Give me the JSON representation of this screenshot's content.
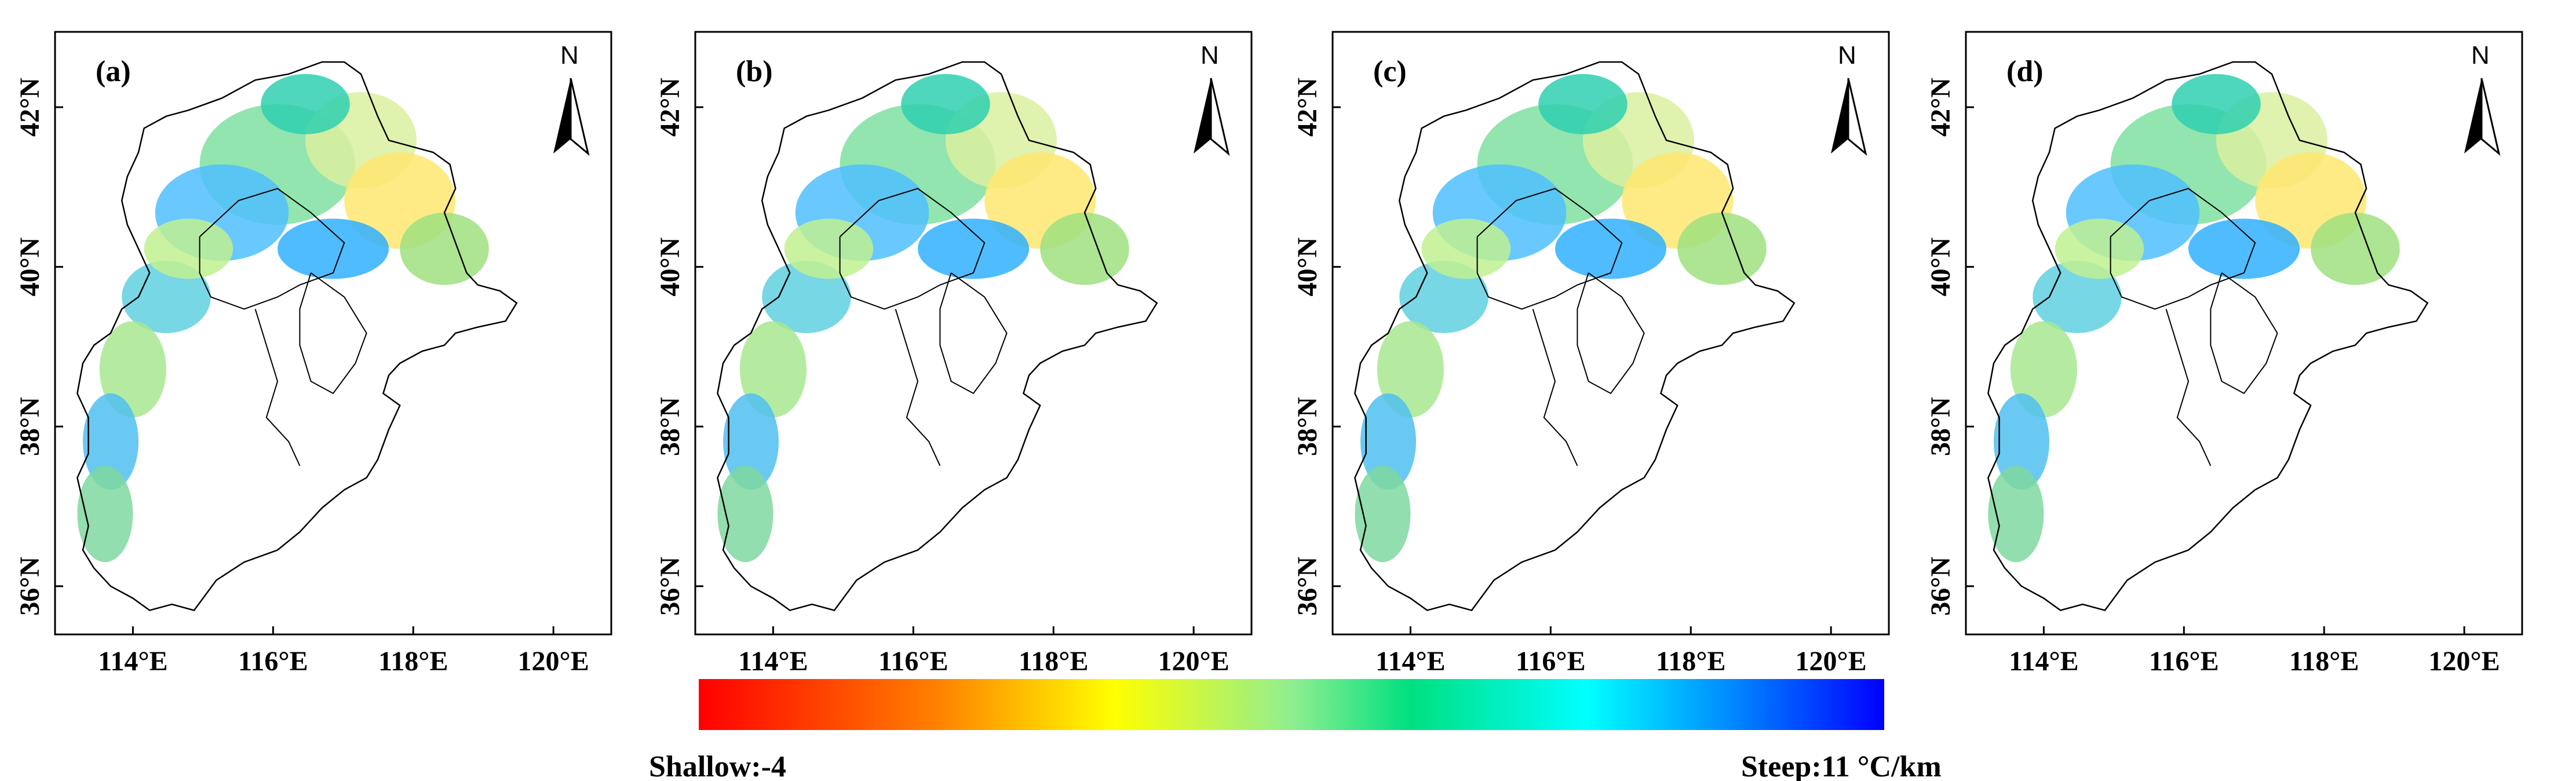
{
  "colors": {
    "background": "#ffffff",
    "frame": "#000000",
    "outline": "#000000"
  },
  "panels": [
    {
      "label": "(a)"
    },
    {
      "label": "(b)"
    },
    {
      "label": "(c)"
    },
    {
      "label": "(d)"
    }
  ],
  "north_arrow_label": "N",
  "x_ticks": [
    "114°E",
    "116°E",
    "118°E",
    "120°E"
  ],
  "y_ticks": [
    "36°N",
    "38°N",
    "40°N",
    "42°N"
  ],
  "colorbar": {
    "left_label": "Shallow:-4",
    "right_label": "Steep:11 °C/km",
    "min": -4,
    "max": 11,
    "unit": "°C/km",
    "gradient": [
      "#ff0000",
      "#ff8000",
      "#ffff00",
      "#90ee90",
      "#00e080",
      "#00ffff",
      "#0080ff",
      "#0000ff"
    ]
  }
}
